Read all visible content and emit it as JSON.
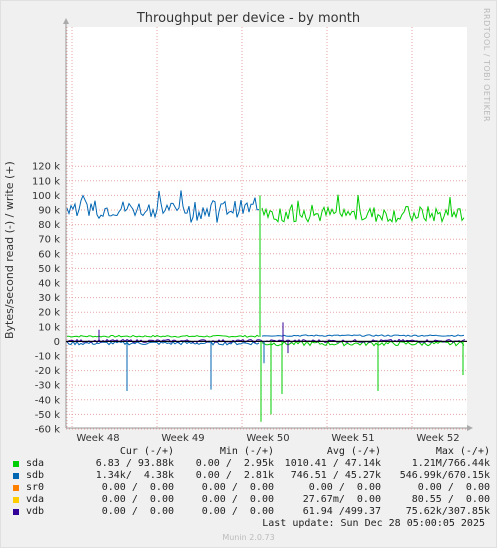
{
  "title": "Throughput per device - by month",
  "side_credit": "RRDTOOL / TOBI OETIKER",
  "footer": "Munin 2.0.73",
  "last_update": "Last update: Sun Dec 28 05:00:05 2025",
  "legend": {
    "headers": {
      "cur": "Cur (-/+)",
      "min": "Min (-/+)",
      "avg": "Avg (-/+)",
      "max": "Max (-/+)"
    },
    "rows": [
      {
        "name": "sda",
        "color": "#00cc00",
        "cur": "6.83 / 93.88k",
        "min": "0.00 /  2.95k",
        "avg": "1010.41 / 47.14k",
        "max": "1.21M/766.44k"
      },
      {
        "name": "sdb",
        "color": "#0066b3",
        "cur": "1.34k/  4.38k",
        "min": "0.00 /  2.81k",
        "avg": "746.51 / 45.27k",
        "max": "546.99k/670.15k"
      },
      {
        "name": "sr0",
        "color": "#ff8000",
        "cur": "0.00 /  0.00",
        "min": "0.00 /  0.00",
        "avg": "0.00 /  0.00",
        "max": "0.00 /  0.00"
      },
      {
        "name": "vda",
        "color": "#ffcc00",
        "cur": "0.00 /  0.00",
        "min": "0.00 /  0.00",
        "avg": "27.67m/  0.00",
        "max": "80.55 /  0.00"
      },
      {
        "name": "vdb",
        "color": "#330099",
        "cur": "0.00 /  0.00",
        "min": "0.00 /  0.00",
        "avg": "61.94 /499.37",
        "max": "75.62k/307.85k"
      }
    ]
  },
  "chart_data": {
    "type": "line",
    "title": "Throughput per device - by month",
    "ylabel": "Bytes/second read (-) / write (+)",
    "ylim": [
      -60000,
      125000
    ],
    "y_ticks": [
      -60000,
      -50000,
      -40000,
      -30000,
      -20000,
      -10000,
      0,
      10000,
      20000,
      30000,
      40000,
      50000,
      60000,
      70000,
      80000,
      90000,
      100000,
      110000,
      120000
    ],
    "y_tick_labels": [
      "-60 k",
      "-50 k",
      "-40 k",
      "-30 k",
      "-20 k",
      "-10 k",
      "0",
      "10 k",
      "20 k",
      "30 k",
      "40 k",
      "50 k",
      "60 k",
      "70 k",
      "80 k",
      "90 k",
      "100 k",
      "110 k",
      "120 k"
    ],
    "x_tick_labels": [
      "Week 48",
      "Week 49",
      "Week 50",
      "Week 51",
      "Week 52"
    ],
    "grid": true,
    "series": [
      {
        "name": "sda",
        "color": "#00cc00",
        "write_level": 87000,
        "write_range": [
          82000,
          101000
        ],
        "write_before": 3500,
        "read_spikes": [
          -55000,
          -50000,
          -36000,
          -34000,
          -23000
        ]
      },
      {
        "name": "sdb",
        "color": "#0066b3",
        "write_level": 91000,
        "write_range": [
          78000,
          104000
        ],
        "write_after": 4000,
        "read_spikes": [
          -34000,
          -33000,
          -15000
        ]
      },
      {
        "name": "sr0",
        "color": "#ff8000",
        "write_level": 0
      },
      {
        "name": "vda",
        "color": "#ffcc00",
        "write_level": 0
      },
      {
        "name": "vdb",
        "color": "#330099",
        "write_peak": 13000,
        "read_spikes": [
          -8000
        ]
      }
    ]
  }
}
